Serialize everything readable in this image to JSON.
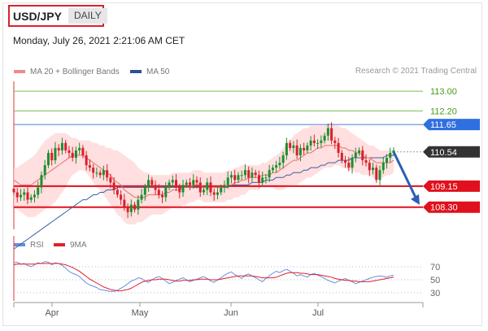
{
  "header": {
    "pair": "USD/JPY",
    "timeframe": "DAILY"
  },
  "datetime": "Monday, July 26, 2021 2:21:06 AM CET",
  "credit": "Research © 2021 Trading Central",
  "legend_main": {
    "ma20": "MA 20 + Bollinger Bands",
    "ma50": "MA 50"
  },
  "legend_rsi": {
    "rsi": "RSI",
    "ma9": "9MA"
  },
  "colors": {
    "up": "#1b8f2e",
    "down": "#d8202a",
    "band": "#ffd4d4",
    "ma20": "#e87070",
    "ma50": "#3f5fa8",
    "rsi": "#6b8ce0",
    "rsi_ma": "#e0202a",
    "resistance": "#4a7bdc",
    "support": "#e0101c",
    "target": "#7cbf4a"
  },
  "chart_data": [
    {
      "type": "candlestick",
      "title": "USD/JPY",
      "x_ticks": [
        "Apr",
        "May",
        "Jun",
        "Jul"
      ],
      "ylim": [
        107.4,
        113.4
      ],
      "levels": [
        {
          "label": "113.00",
          "value": 113.0,
          "kind": "target"
        },
        {
          "label": "112.20",
          "value": 112.2,
          "kind": "target"
        },
        {
          "label": "111.65",
          "value": 111.65,
          "kind": "resistance"
        },
        {
          "label": "110.54",
          "value": 110.54,
          "kind": "last"
        },
        {
          "label": "109.15",
          "value": 109.15,
          "kind": "support"
        },
        {
          "label": "108.30",
          "value": 108.3,
          "kind": "support"
        }
      ],
      "close": [
        108.9,
        108.7,
        108.8,
        108.9,
        108.6,
        108.7,
        108.8,
        109.1,
        109.6,
        110.0,
        110.5,
        110.2,
        110.7,
        110.6,
        110.9,
        110.6,
        110.5,
        110.3,
        110.6,
        110.7,
        110.4,
        110.0,
        109.9,
        109.7,
        109.7,
        109.6,
        109.8,
        109.5,
        109.3,
        109.0,
        108.8,
        108.6,
        108.3,
        108.1,
        108.4,
        108.2,
        108.6,
        108.8,
        109.1,
        109.4,
        109.2,
        109.0,
        108.8,
        108.7,
        109.1,
        109.3,
        109.4,
        109.1,
        108.9,
        109.2,
        109.3,
        109.2,
        109.4,
        109.3,
        108.9,
        109.0,
        109.3,
        108.9,
        108.8,
        108.9,
        109.1,
        109.2,
        109.5,
        109.6,
        109.4,
        109.6,
        109.6,
        109.8,
        109.5,
        109.7,
        109.6,
        109.3,
        109.5,
        109.5,
        109.8,
        109.9,
        110.0,
        110.1,
        110.4,
        110.9,
        110.7,
        110.8,
        110.4,
        110.7,
        110.6,
        110.8,
        111.0,
        110.9,
        110.9,
        111.0,
        111.2,
        111.5,
        111.0,
        110.9,
        110.5,
        110.2,
        110.1,
        109.9,
        110.3,
        110.5,
        110.6,
        110.2,
        110.1,
        109.8,
        109.9,
        109.4,
        109.8,
        110.1,
        110.3,
        110.5,
        110.6
      ],
      "ma20": [
        109.4,
        109.3,
        109.2,
        109.2,
        109.2,
        109.2,
        109.3,
        109.4,
        109.5,
        109.6,
        109.7,
        109.8,
        109.9,
        110.0,
        110.1,
        110.2,
        110.3,
        110.4,
        110.4,
        110.4,
        110.4,
        110.3,
        110.2,
        110.1,
        110.0,
        109.9,
        109.8,
        109.7,
        109.6,
        109.4,
        109.3,
        109.2,
        109.0,
        108.9,
        108.8,
        108.7,
        108.7,
        108.7,
        108.7,
        108.8,
        108.8,
        108.8,
        108.8,
        108.8,
        108.9,
        108.9,
        109.0,
        109.0,
        109.0,
        109.1,
        109.1,
        109.1,
        109.2,
        109.2,
        109.2,
        109.1,
        109.1,
        109.1,
        109.1,
        109.1,
        109.1,
        109.1,
        109.2,
        109.2,
        109.3,
        109.3,
        109.4,
        109.4,
        109.5,
        109.5,
        109.5,
        109.5,
        109.6,
        109.6,
        109.6,
        109.7,
        109.7,
        109.8,
        109.9,
        110.0,
        110.1,
        110.2,
        110.2,
        110.3,
        110.4,
        110.5,
        110.5,
        110.6,
        110.7,
        110.7,
        110.8,
        110.8,
        110.8,
        110.8,
        110.8,
        110.7,
        110.7,
        110.6,
        110.6,
        110.5,
        110.5,
        110.4,
        110.3,
        110.3,
        110.2,
        110.1,
        110.1,
        110.1,
        110.1,
        110.1,
        110.2
      ],
      "bb_upper": [
        109.9,
        109.9,
        110.0,
        110.1,
        110.2,
        110.3,
        110.4,
        110.6,
        110.8,
        111.0,
        111.1,
        111.2,
        111.3,
        111.3,
        111.3,
        111.3,
        111.2,
        111.1,
        111.1,
        111.0,
        111.0,
        111.0,
        111.0,
        110.9,
        110.9,
        110.8,
        110.8,
        110.7,
        110.7,
        110.6,
        110.6,
        110.5,
        110.4,
        110.3,
        110.2,
        110.1,
        109.9,
        109.8,
        109.7,
        109.7,
        109.6,
        109.6,
        109.6,
        109.6,
        109.6,
        109.6,
        109.7,
        109.7,
        109.7,
        109.7,
        109.7,
        109.7,
        109.8,
        109.8,
        109.8,
        109.7,
        109.7,
        109.7,
        109.7,
        109.7,
        109.7,
        109.7,
        109.8,
        109.8,
        109.9,
        109.9,
        110.0,
        110.0,
        110.0,
        110.0,
        110.0,
        110.0,
        110.1,
        110.1,
        110.2,
        110.3,
        110.4,
        110.5,
        110.7,
        110.9,
        111.0,
        111.2,
        111.3,
        111.4,
        111.5,
        111.5,
        111.6,
        111.6,
        111.6,
        111.6,
        111.6,
        111.7,
        111.7,
        111.6,
        111.6,
        111.5,
        111.5,
        111.4,
        111.3,
        111.2,
        111.1,
        111.0,
        110.9,
        110.8,
        110.8,
        110.7,
        110.6,
        110.6,
        110.6,
        110.6,
        110.6
      ],
      "bb_lower": [
        108.3,
        108.2,
        108.1,
        108.0,
        107.9,
        107.9,
        107.9,
        108.0,
        108.1,
        108.2,
        108.3,
        108.4,
        108.5,
        108.7,
        108.9,
        109.1,
        109.4,
        109.6,
        109.7,
        109.8,
        109.8,
        109.7,
        109.5,
        109.3,
        109.1,
        109.0,
        108.8,
        108.6,
        108.4,
        108.2,
        108.0,
        107.9,
        107.7,
        107.6,
        107.6,
        107.6,
        107.7,
        107.7,
        107.8,
        107.9,
        108.0,
        108.0,
        108.0,
        108.0,
        108.1,
        108.2,
        108.3,
        108.3,
        108.3,
        108.4,
        108.4,
        108.5,
        108.5,
        108.6,
        108.6,
        108.5,
        108.5,
        108.5,
        108.5,
        108.5,
        108.5,
        108.5,
        108.6,
        108.6,
        108.7,
        108.7,
        108.8,
        108.8,
        109.0,
        109.0,
        109.0,
        109.0,
        109.1,
        109.1,
        109.1,
        109.1,
        109.0,
        109.0,
        109.0,
        109.1,
        109.2,
        109.2,
        109.2,
        109.3,
        109.4,
        109.5,
        109.5,
        109.6,
        109.7,
        109.8,
        109.9,
        109.9,
        109.9,
        110.0,
        110.0,
        109.9,
        109.9,
        109.8,
        109.8,
        109.7,
        109.7,
        109.6,
        109.6,
        109.6,
        109.5,
        109.4,
        109.5,
        109.5,
        109.6,
        109.6,
        109.7
      ],
      "ma50": [
        106.6,
        106.7,
        106.8,
        106.9,
        107.0,
        107.1,
        107.2,
        107.3,
        107.4,
        107.5,
        107.6,
        107.7,
        107.8,
        107.9,
        108.0,
        108.1,
        108.2,
        108.3,
        108.4,
        108.5,
        108.6,
        108.6,
        108.7,
        108.8,
        108.8,
        108.9,
        108.9,
        109.0,
        109.0,
        109.0,
        109.1,
        109.1,
        109.1,
        109.1,
        109.1,
        109.1,
        109.1,
        109.1,
        109.1,
        109.1,
        109.1,
        109.1,
        109.1,
        109.1,
        109.1,
        109.1,
        109.1,
        109.1,
        109.1,
        109.1,
        109.1,
        109.1,
        109.1,
        109.1,
        109.1,
        109.1,
        109.1,
        109.1,
        109.1,
        109.1,
        109.1,
        109.1,
        109.1,
        109.2,
        109.2,
        109.2,
        109.2,
        109.2,
        109.2,
        109.3,
        109.3,
        109.3,
        109.3,
        109.4,
        109.4,
        109.4,
        109.5,
        109.5,
        109.5,
        109.6,
        109.6,
        109.7,
        109.7,
        109.7,
        109.8,
        109.8,
        109.9,
        109.9,
        109.9,
        110.0,
        110.0,
        110.1,
        110.1,
        110.1,
        110.2,
        110.2,
        110.2,
        110.2,
        110.3,
        110.3,
        110.3,
        110.3,
        110.3,
        110.3,
        110.3,
        110.3,
        110.3,
        110.3,
        110.4,
        110.4,
        110.4
      ],
      "forecast_arrow": {
        "from": 110.54,
        "to": 109.15
      }
    },
    {
      "type": "line",
      "title": "RSI",
      "yticks": [
        "70",
        "50",
        "30"
      ],
      "ylim": [
        20,
        85
      ],
      "series": [
        {
          "name": "RSI",
          "values": [
            76,
            77,
            74,
            75,
            72,
            70,
            73,
            76,
            75,
            78,
            77,
            73,
            76,
            75,
            72,
            68,
            63,
            60,
            58,
            55,
            50,
            45,
            42,
            40,
            38,
            35,
            34,
            33,
            32,
            32,
            34,
            37,
            40,
            44,
            48,
            50,
            53,
            52,
            48,
            46,
            50,
            53,
            55,
            52,
            48,
            44,
            46,
            49,
            51,
            53,
            50,
            47,
            49,
            51,
            53,
            55,
            52,
            48,
            46,
            50,
            53,
            57,
            60,
            62,
            58,
            55,
            52,
            57,
            59,
            56,
            53,
            50,
            47,
            52,
            56,
            60,
            63,
            61,
            64,
            66,
            63,
            60,
            56,
            58,
            56,
            54,
            58,
            60,
            57,
            55,
            52,
            49,
            47,
            45,
            48,
            50,
            52,
            49,
            47,
            44,
            46,
            48,
            50,
            52,
            54,
            55,
            56,
            55,
            54,
            56,
            57
          ]
        },
        {
          "name": "9MA",
          "values": [
            73,
            74,
            74,
            74,
            74,
            74,
            74,
            75,
            75,
            75,
            75,
            75,
            75,
            75,
            74,
            73,
            71,
            69,
            66,
            63,
            59,
            55,
            51,
            48,
            45,
            42,
            39,
            37,
            35,
            34,
            33,
            33,
            34,
            35,
            37,
            40,
            43,
            46,
            48,
            49,
            50,
            50,
            51,
            51,
            51,
            50,
            49,
            48,
            48,
            49,
            49,
            49,
            50,
            50,
            51,
            51,
            51,
            50,
            50,
            50,
            51,
            52,
            53,
            54,
            55,
            56,
            56,
            56,
            56,
            56,
            55,
            54,
            53,
            53,
            53,
            53,
            54,
            56,
            58,
            60,
            61,
            61,
            61,
            60,
            60,
            59,
            58,
            58,
            58,
            57,
            56,
            55,
            54,
            52,
            51,
            50,
            49,
            49,
            48,
            48,
            47,
            47,
            47,
            47,
            48,
            49,
            50,
            51,
            52,
            53,
            54
          ]
        }
      ]
    }
  ]
}
